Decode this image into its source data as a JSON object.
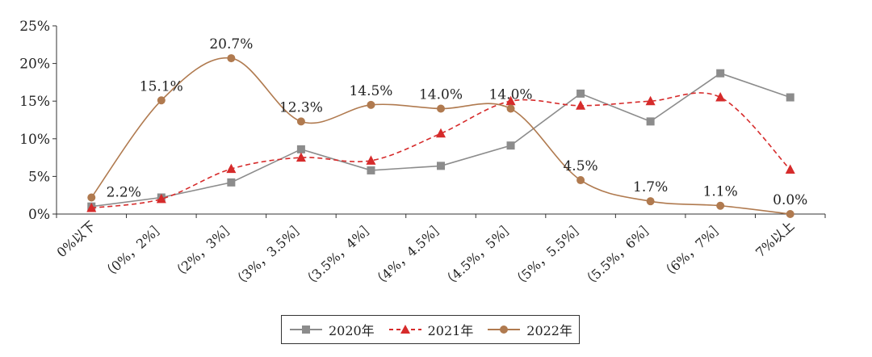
{
  "chart_data": {
    "type": "line",
    "categories": [
      "0%以下",
      "（0%，2%］",
      "（2%，3%］",
      "（3%，3.5%］",
      "（3.5%，4%］",
      "（4%，4.5%］",
      "（4.5%，5%］",
      "（5%，5.5%］",
      "（5.5%，6%］",
      "（6%，7%］",
      "7%以上"
    ],
    "yticks": [
      "0%",
      "5%",
      "10%",
      "15%",
      "20%",
      "25%"
    ],
    "ylim": [
      0,
      25
    ],
    "series": [
      {
        "name": "2020年",
        "color": "#8c8c8c",
        "marker": "square",
        "dash": "solid",
        "smooth": false,
        "values": [
          1.0,
          2.2,
          4.2,
          8.6,
          5.8,
          6.4,
          9.1,
          16.0,
          12.3,
          18.7,
          15.5
        ]
      },
      {
        "name": "2021年",
        "color": "#d62b2b",
        "marker": "triangle",
        "dash": "dashed",
        "smooth": true,
        "values": [
          0.8,
          2.0,
          6.0,
          7.5,
          7.1,
          10.7,
          15.0,
          14.4,
          15.0,
          15.5,
          5.9
        ]
      },
      {
        "name": "2022年",
        "color": "#b07a4f",
        "marker": "circle",
        "dash": "solid",
        "smooth": true,
        "values": [
          2.2,
          15.1,
          20.7,
          12.3,
          14.5,
          14.0,
          14.0,
          4.5,
          1.7,
          1.1,
          0.0
        ]
      }
    ],
    "data_labels": {
      "series": "2022年",
      "labels": [
        "2.2%",
        "15.1%",
        "20.7%",
        "12.3%",
        "14.5%",
        "14.0%",
        "14.0%",
        "4.5%",
        "1.7%",
        "1.1%",
        "0.0%"
      ]
    },
    "legend_position": "bottom",
    "grid": false
  }
}
